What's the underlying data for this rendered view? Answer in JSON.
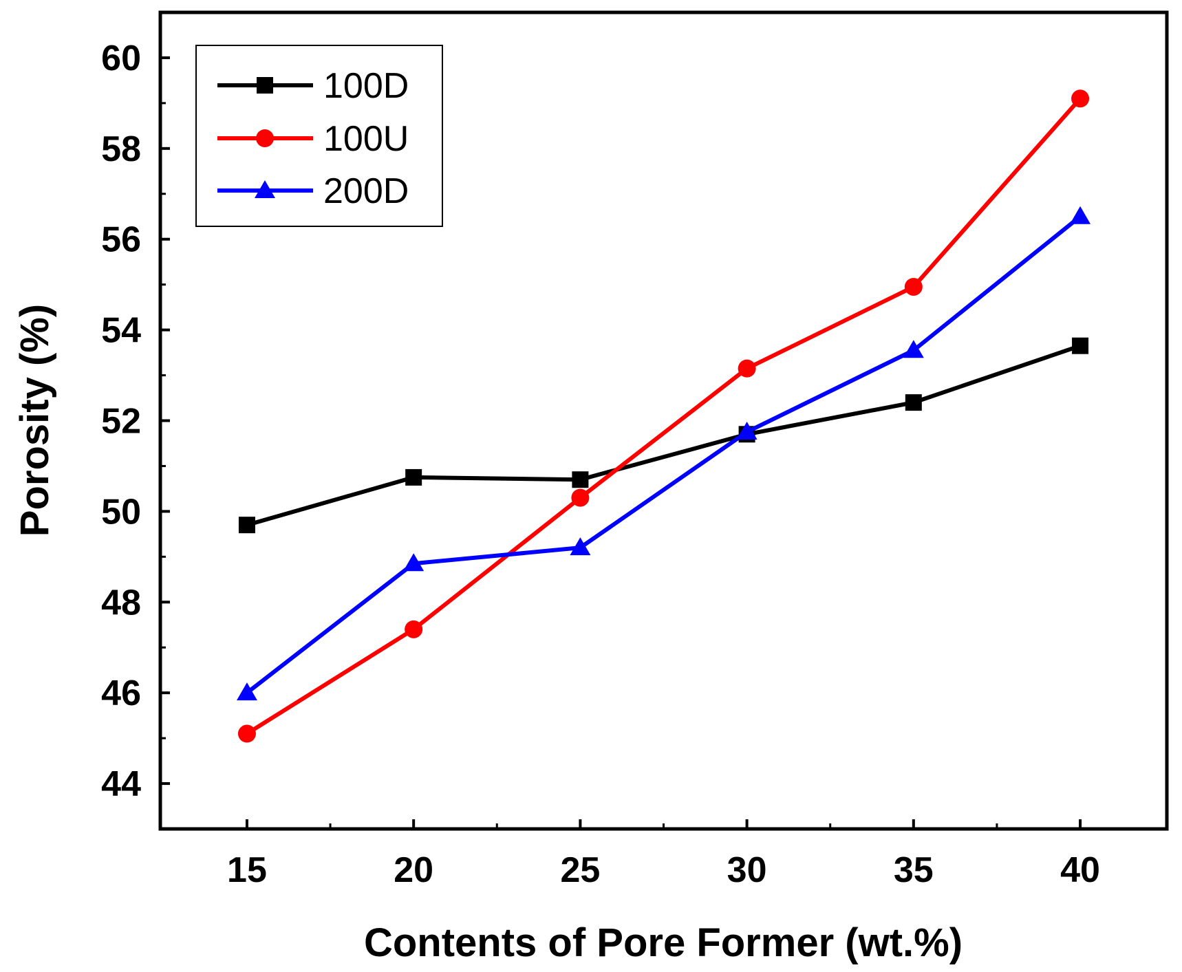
{
  "chart_data": {
    "type": "line",
    "title": "",
    "xlabel": "Contents of Pore Former (wt.%)",
    "ylabel": "Porosity (%)",
    "x": [
      15,
      20,
      25,
      30,
      35,
      40
    ],
    "xticks": [
      15,
      20,
      25,
      30,
      35,
      40
    ],
    "yticks": [
      44,
      46,
      48,
      50,
      52,
      54,
      56,
      58,
      60
    ],
    "xlim": [
      12.4,
      42.6
    ],
    "ylim": [
      43.0,
      61.0
    ],
    "grid": false,
    "legend_position": "top-left",
    "series": [
      {
        "name": "100D",
        "color": "#000000",
        "marker": "square",
        "values": [
          49.7,
          50.75,
          50.7,
          51.7,
          52.4,
          53.65
        ]
      },
      {
        "name": "100U",
        "color": "#ff0000",
        "marker": "circle",
        "values": [
          45.1,
          47.4,
          50.3,
          53.15,
          54.95,
          59.1
        ]
      },
      {
        "name": "200D",
        "color": "#0000ff",
        "marker": "triangle",
        "values": [
          46.0,
          48.85,
          49.2,
          51.75,
          53.55,
          56.5
        ]
      }
    ]
  }
}
